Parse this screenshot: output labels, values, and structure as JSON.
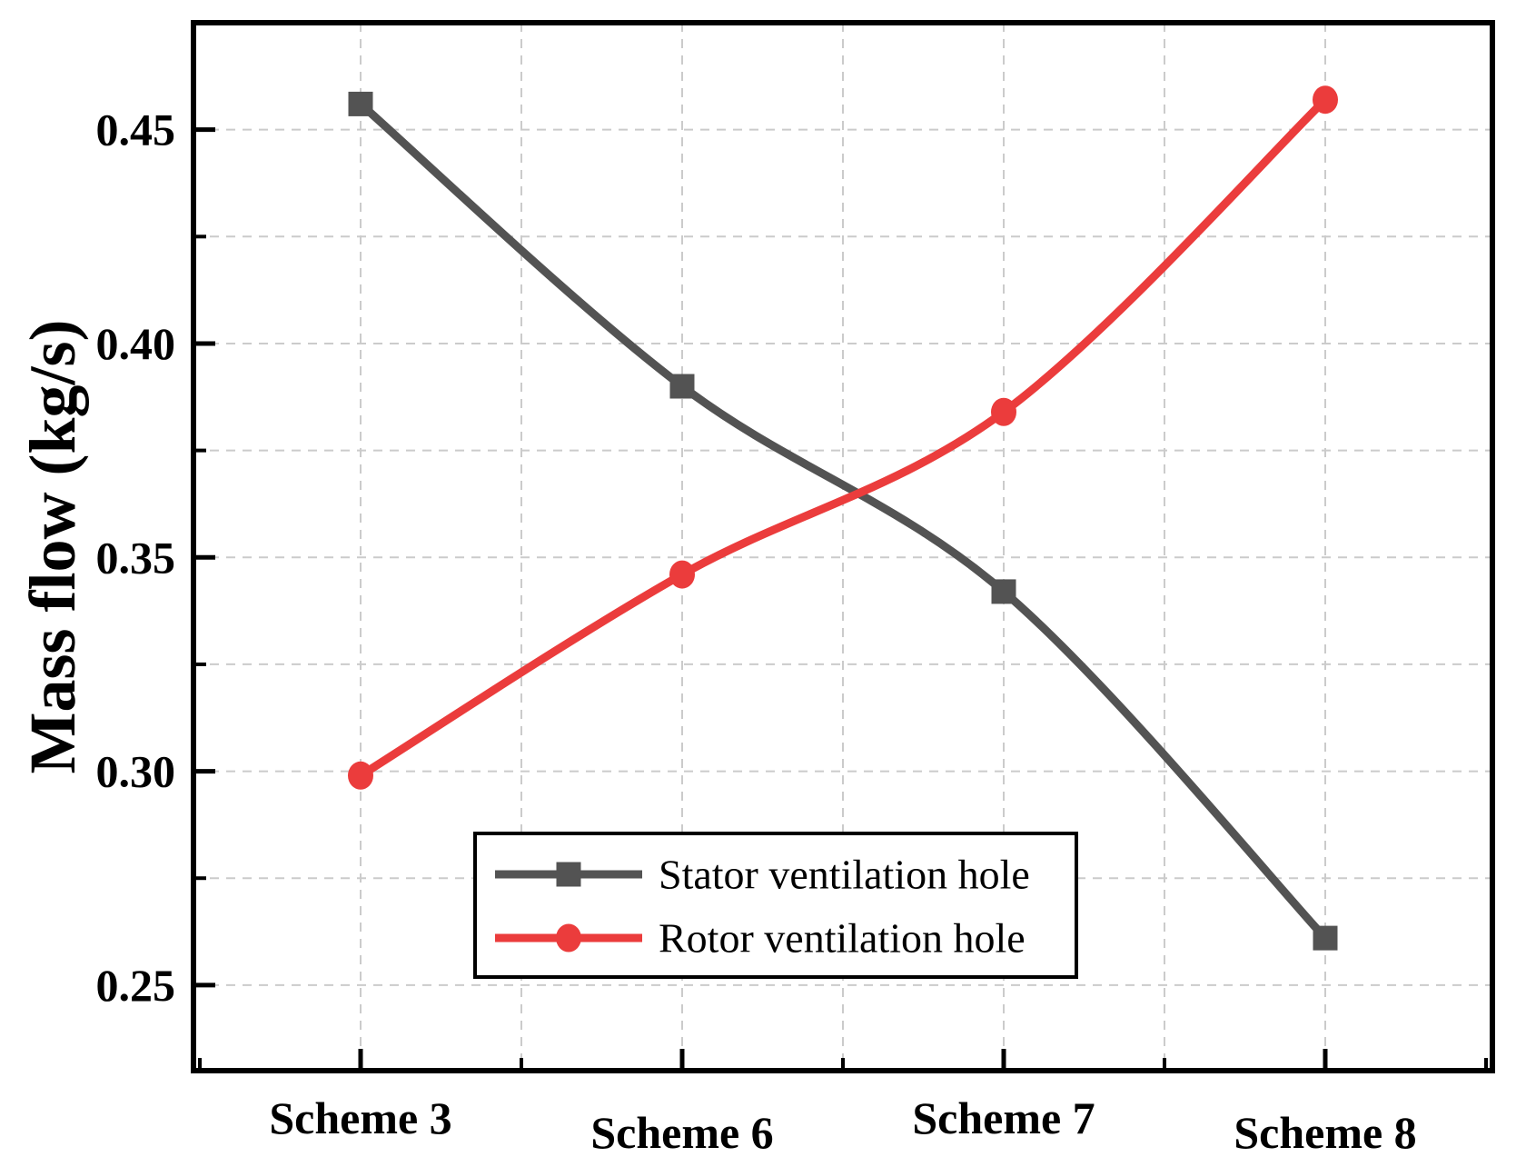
{
  "chart_data": {
    "type": "line",
    "title": "",
    "categories": [
      "Scheme 3",
      "Scheme 6",
      "Scheme 7",
      "Scheme 8"
    ],
    "series": [
      {
        "name": "Stator ventilation hole",
        "values": [
          0.456,
          0.39,
          0.342,
          0.261
        ],
        "color": "#535353",
        "marker": "square"
      },
      {
        "name": "Rotor ventilation hole",
        "values": [
          0.299,
          0.346,
          0.384,
          0.457
        ],
        "color": "#eb3c3c",
        "marker": "circle"
      }
    ],
    "xlabel": "",
    "ylabel": "Mass flow (kg/s)",
    "ylim": [
      0.23,
      0.475
    ],
    "yticks_major": [
      0.25,
      0.3,
      0.35,
      0.4,
      0.45
    ],
    "ytick_labels": [
      "0.25",
      "0.30",
      "0.35",
      "0.40",
      "0.45"
    ],
    "yticks_minor": [
      0.275,
      0.325,
      0.375,
      0.425
    ],
    "grid": "dashed-major-and-minor-both-axes",
    "legend_position": "inside-bottom-center",
    "colors": {
      "grid": "#cbcbcb",
      "axis": "#000000",
      "text": "#000000",
      "background": "#ffffff"
    }
  }
}
